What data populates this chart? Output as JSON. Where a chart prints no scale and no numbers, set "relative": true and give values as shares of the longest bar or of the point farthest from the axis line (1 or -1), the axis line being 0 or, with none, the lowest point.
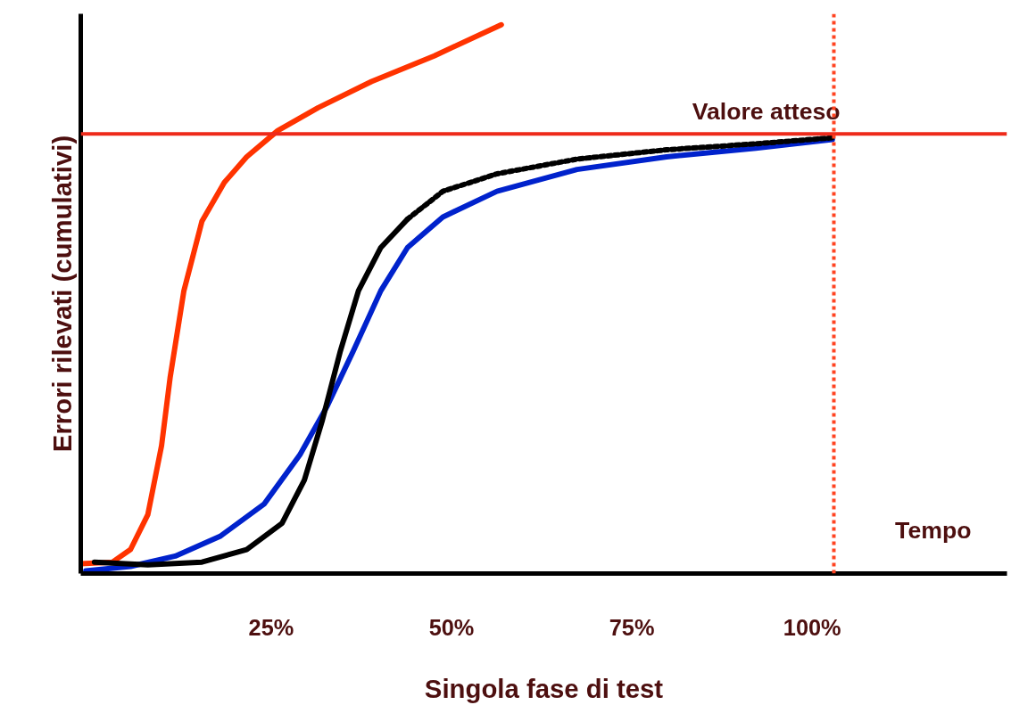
{
  "chart_data": {
    "type": "line",
    "relative": true,
    "xlabel": "Singola fase di test",
    "ylabel": "Errori rilevati (cumulativi)",
    "xlim": [
      -1.4,
      127
    ],
    "xticks": [
      {
        "value": 25,
        "label": "25%"
      },
      {
        "value": 50,
        "label": "50%"
      },
      {
        "value": 75,
        "label": "75%"
      },
      {
        "value": 100,
        "label": "100%"
      }
    ],
    "grid": false,
    "marker": "none",
    "annotations": [
      "Tempo"
    ],
    "ref_lines": [
      {
        "axis": "y",
        "value": 0.8,
        "label": "Valore atteso",
        "color": "#ee2a1a",
        "line_style": "solid"
      },
      {
        "axis": "x",
        "value": 103,
        "label": null,
        "color": "#ff4422",
        "line_style": "dotted"
      }
    ],
    "series": [
      {
        "color": "#ff3300",
        "line_style": "solid",
        "x": [
          -1.4,
          3.0,
          5.5,
          7.9,
          9.8,
          11.0,
          12.9,
          15.4,
          18.5,
          21.6,
          25.9,
          31.5,
          38.9,
          47.6,
          56.9
        ],
        "values": [
          0.013,
          0.016,
          0.039,
          0.103,
          0.229,
          0.355,
          0.513,
          0.64,
          0.711,
          0.758,
          0.806,
          0.848,
          0.896,
          0.943,
          1.0
        ]
      },
      {
        "color": "#0022cc",
        "line_style": "solid",
        "x": [
          -0.7,
          5.5,
          11.7,
          17.9,
          24.0,
          29.0,
          32.7,
          36.4,
          40.2,
          43.9,
          48.8,
          56.3,
          67.4,
          79.8,
          92.2,
          102.8
        ],
        "values": [
          0,
          0.008,
          0.027,
          0.063,
          0.122,
          0.213,
          0.3,
          0.403,
          0.513,
          0.592,
          0.648,
          0.695,
          0.735,
          0.758,
          0.774,
          0.79
        ]
      },
      {
        "color": "#000000",
        "line_style": "solid",
        "x": [
          0.5,
          7.9,
          15.4,
          21.6,
          26.5,
          29.6,
          32.1,
          34.6,
          37.1,
          40.2,
          43.9
        ],
        "values": [
          0.016,
          0.011,
          0.016,
          0.039,
          0.087,
          0.166,
          0.276,
          0.403,
          0.513,
          0.592,
          0.644
        ]
      },
      {
        "color": "#000000",
        "line_style": "dotted",
        "x": [
          43.9,
          48.8,
          56.3,
          67.4,
          79.8,
          92.2,
          102.8
        ],
        "values": [
          0.644,
          0.695,
          0.727,
          0.754,
          0.771,
          0.782,
          0.793
        ]
      }
    ]
  }
}
